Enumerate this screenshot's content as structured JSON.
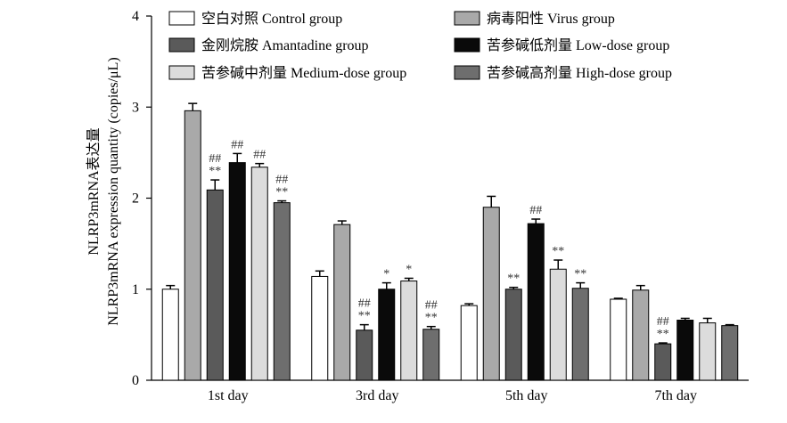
{
  "chart_data": {
    "type": "bar",
    "ylabel_cn": "NLRP3mRNA表达量",
    "ylabel_en": "NLRP3mRNA expression quantity (copies/μL)",
    "ylim": [
      0,
      4
    ],
    "yticks": [
      "0",
      "1",
      "2",
      "3",
      "4"
    ],
    "categories": [
      "1st day",
      "3rd day",
      "5th day",
      "7th day"
    ],
    "legend_position": "top",
    "series": [
      {
        "name": "空白对照 Control group",
        "color": "#ffffff",
        "values": [
          1.0,
          1.14,
          0.82,
          0.89
        ],
        "errors": [
          0.04,
          0.06,
          0.02,
          0.01
        ],
        "annotations": [
          "",
          "",
          "",
          ""
        ]
      },
      {
        "name": "病毒阳性 Virus group",
        "color": "#a9a9a9",
        "values": [
          2.96,
          1.71,
          1.9,
          0.99
        ],
        "errors": [
          0.08,
          0.04,
          0.12,
          0.05
        ],
        "annotations": [
          "",
          "",
          "",
          ""
        ]
      },
      {
        "name": "金刚烷胺 Amantadine group",
        "color": "#5a5a5a",
        "values": [
          2.09,
          0.55,
          1.0,
          0.4
        ],
        "errors": [
          0.11,
          0.06,
          0.02,
          0.01
        ],
        "annotations": [
          "##\n**",
          "##\n**",
          "**",
          "##\n**"
        ]
      },
      {
        "name": "苦参碱低剂量 Low-dose group",
        "color": "#0a0a0a",
        "values": [
          2.39,
          1.0,
          1.72,
          0.66
        ],
        "errors": [
          0.1,
          0.07,
          0.05,
          0.02
        ],
        "annotations": [
          "##",
          "*",
          "##",
          ""
        ]
      },
      {
        "name": "苦参碱中剂量 Medium-dose group",
        "color": "#dcdcdc",
        "values": [
          2.34,
          1.09,
          1.22,
          0.63
        ],
        "errors": [
          0.04,
          0.03,
          0.1,
          0.05
        ],
        "annotations": [
          "##",
          "*",
          "**",
          ""
        ]
      },
      {
        "name": "苦参碱高剂量 High-dose group",
        "color": "#6e6e6e",
        "values": [
          1.95,
          0.56,
          1.01,
          0.6
        ],
        "errors": [
          0.02,
          0.03,
          0.06,
          0.01
        ],
        "annotations": [
          "##\n**",
          "##\n**",
          "**",
          ""
        ]
      }
    ]
  }
}
